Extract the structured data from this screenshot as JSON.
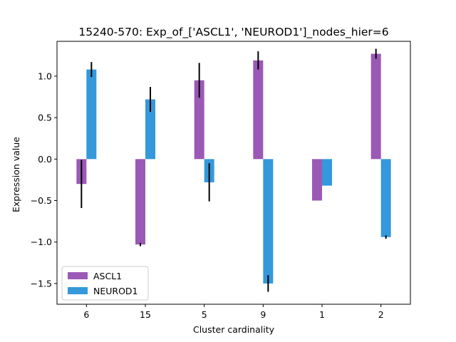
{
  "chart_data": {
    "type": "bar",
    "title": "15240-570: Exp_of_['ASCL1', 'NEUROD1']_nodes_hier=6",
    "xlabel": "Cluster cardinality",
    "ylabel": "Expression value",
    "categories": [
      "6",
      "15",
      "5",
      "9",
      "1",
      "2"
    ],
    "ylim": [
      -1.75,
      1.42
    ],
    "yticks": [
      -1.5,
      -1.0,
      -0.5,
      0.0,
      0.5,
      1.0
    ],
    "ytick_labels": [
      "−1.5",
      "−1.0",
      "−0.5",
      "0.0",
      "0.5",
      "1.0"
    ],
    "grid": false,
    "legend_position": "lower-left",
    "series": [
      {
        "name": "ASCL1",
        "color": "#9b59b6",
        "values": [
          -0.3,
          -1.03,
          0.95,
          1.19,
          -0.5,
          1.27
        ],
        "errors": [
          0.29,
          0.02,
          0.21,
          0.11,
          0.0,
          0.06
        ]
      },
      {
        "name": "NEUROD1",
        "color": "#3498db",
        "values": [
          1.08,
          0.72,
          -0.28,
          -1.5,
          -0.32,
          -0.94
        ],
        "errors": [
          0.09,
          0.15,
          0.23,
          0.1,
          0.0,
          0.02
        ]
      }
    ]
  }
}
